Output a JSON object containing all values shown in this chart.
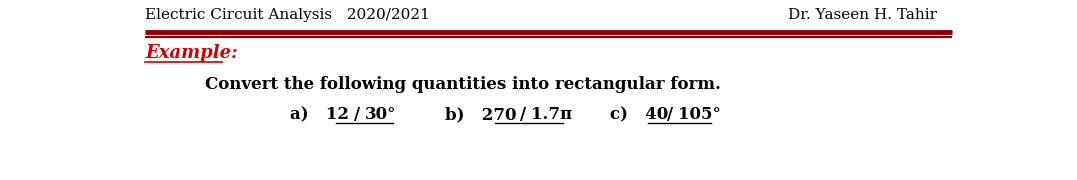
{
  "header_left": "Electric Circuit Analysis   2020/2021",
  "header_right": "Dr. Yaseen H. Tahir",
  "example_label": "Example:",
  "body_text": "Convert the following quantities into rectangular form.",
  "item_a_angle": "30°",
  "item_b_angle": "1.7π",
  "item_c_angle": "105°",
  "line_color": "#8B0000",
  "example_color": "#CC0000",
  "header_fontsize": 11,
  "body_fontsize": 12,
  "example_fontsize": 13,
  "items_fontsize": 12,
  "bg_color": "#ffffff"
}
